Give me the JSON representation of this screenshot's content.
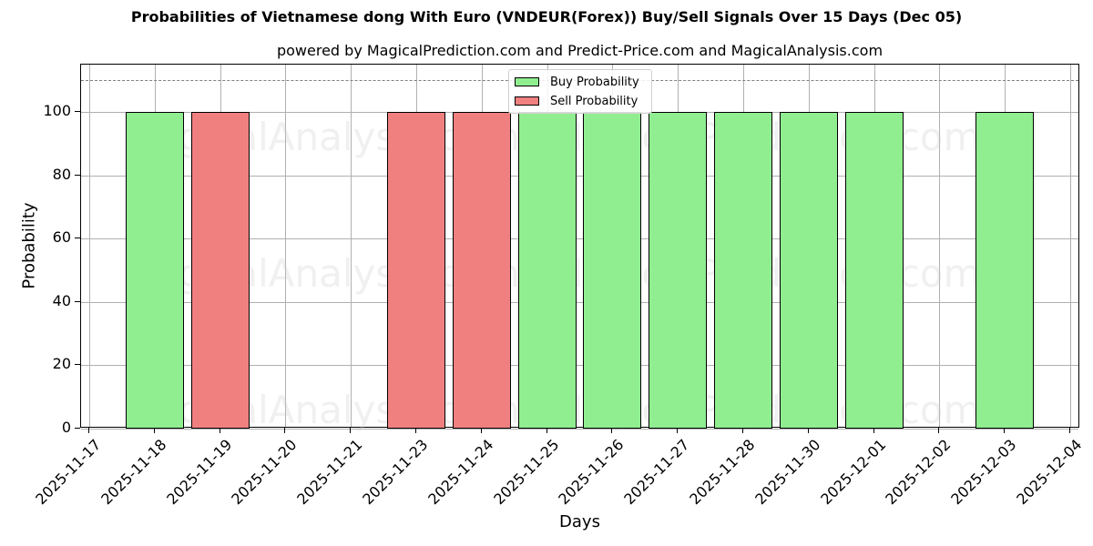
{
  "chart_data": {
    "type": "bar",
    "title": "Probabilities of Vietnamese dong With Euro (VNDEUR(Forex)) Buy/Sell Signals Over 15 Days (Dec 05)",
    "subtitle": "powered by MagicalPrediction.com and Predict-Price.com and MagicalAnalysis.com",
    "xlabel": "Days",
    "ylabel": "Probability",
    "ylim": [
      0,
      115
    ],
    "yticks": [
      0,
      20,
      40,
      60,
      80,
      100
    ],
    "grid": true,
    "legend_position": "upper center",
    "reference_line": {
      "y": 110,
      "style": "dashed",
      "color": "#808080"
    },
    "categories": [
      "2025-11-17",
      "2025-11-18",
      "2025-11-19",
      "2025-11-20",
      "2025-11-21",
      "2025-11-23",
      "2025-11-24",
      "2025-11-25",
      "2025-11-26",
      "2025-11-27",
      "2025-11-28",
      "2025-11-30",
      "2025-12-01",
      "2025-12-02",
      "2025-12-03",
      "2025-12-04"
    ],
    "series": [
      {
        "name": "Buy Probability",
        "color": "#90ee90",
        "values": [
          0,
          100,
          0,
          0,
          0,
          0,
          0,
          100,
          100,
          100,
          100,
          100,
          100,
          0,
          100,
          0
        ]
      },
      {
        "name": "Sell Probability",
        "color": "#f08080",
        "values": [
          0,
          0,
          100,
          0,
          0,
          100,
          100,
          0,
          0,
          0,
          0,
          0,
          0,
          0,
          0,
          0
        ]
      }
    ],
    "watermarks": [
      "MagicalAnalysis.com",
      "MagicalPrediction.com"
    ]
  },
  "legend": {
    "buy_label": "Buy Probability",
    "sell_label": "Sell Probability"
  }
}
